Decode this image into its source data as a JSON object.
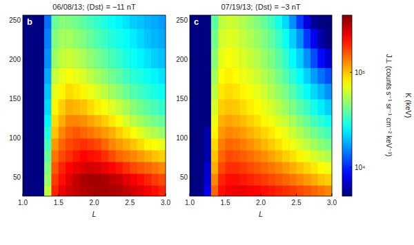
{
  "chart_data": [
    {
      "type": "heatmap",
      "title": "06/08/13; ⟨Dst⟩ = −11 nT",
      "annotation": "b",
      "xlabel": "L",
      "xlim": [
        1,
        3
      ],
      "xticks": [
        {
          "value": 1,
          "label": "1.0"
        },
        {
          "value": 1.5,
          "label": "1.5"
        },
        {
          "value": 2,
          "label": "2.0"
        },
        {
          "value": 2.5,
          "label": "2.5"
        },
        {
          "value": 3,
          "label": "3.0"
        }
      ],
      "ylim": [
        26,
        257
      ],
      "yticks": [
        50,
        100,
        150,
        200,
        250
      ],
      "x_bins": [
        1,
        1.1,
        1.2,
        1.3,
        1.4,
        1.5,
        1.6,
        1.7,
        1.8,
        1.9,
        2,
        2.1,
        2.2,
        2.3,
        2.4,
        2.5,
        2.6,
        2.7,
        2.8,
        2.9,
        3
      ],
      "y_bins": [
        26,
        40,
        55,
        70,
        85,
        100,
        115,
        130,
        150,
        170,
        190,
        215,
        240,
        257
      ],
      "z": [
        [
          5000,
          5000,
          5000,
          60000,
          200000,
          250000,
          280000,
          300000,
          320000,
          330000,
          340000,
          340000,
          330000,
          320000,
          300000,
          280000,
          260000,
          240000,
          220000,
          200000
        ],
        [
          5000,
          5000,
          5000,
          50000,
          180000,
          220000,
          260000,
          300000,
          330000,
          340000,
          340000,
          330000,
          310000,
          290000,
          260000,
          240000,
          220000,
          200000,
          180000,
          170000
        ],
        [
          5000,
          5000,
          5000,
          45000,
          160000,
          200000,
          230000,
          250000,
          270000,
          280000,
          270000,
          250000,
          230000,
          210000,
          190000,
          170000,
          160000,
          150000,
          140000,
          130000
        ],
        [
          5000,
          5000,
          5000,
          40000,
          140000,
          170000,
          190000,
          210000,
          230000,
          220000,
          210000,
          190000,
          170000,
          150000,
          140000,
          130000,
          120000,
          110000,
          100000,
          95000
        ],
        [
          5000,
          5000,
          5000,
          35000,
          120000,
          150000,
          170000,
          180000,
          190000,
          180000,
          170000,
          150000,
          130000,
          120000,
          110000,
          100000,
          90000,
          80000,
          75000,
          70000
        ],
        [
          5000,
          5000,
          5000,
          30000,
          100000,
          130000,
          150000,
          160000,
          150000,
          140000,
          130000,
          120000,
          110000,
          95000,
          85000,
          75000,
          68000,
          60000,
          55000,
          50000
        ],
        [
          5000,
          5000,
          5000,
          25000,
          90000,
          110000,
          130000,
          130000,
          125000,
          115000,
          105000,
          95000,
          85000,
          75000,
          65000,
          58000,
          52000,
          47000,
          43000,
          40000
        ],
        [
          5000,
          5000,
          5000,
          22000,
          80000,
          95000,
          110000,
          105000,
          100000,
          90000,
          82000,
          75000,
          67000,
          60000,
          53000,
          47000,
          42000,
          38000,
          35000,
          32000
        ],
        [
          5000,
          5000,
          5000,
          20000,
          70000,
          80000,
          90000,
          85000,
          80000,
          72000,
          65000,
          58000,
          52000,
          46000,
          41000,
          37000,
          34000,
          31000,
          29000,
          27000
        ],
        [
          5000,
          5000,
          5000,
          18000,
          60000,
          70000,
          75000,
          70000,
          65000,
          58000,
          52000,
          47000,
          42000,
          38000,
          34000,
          31000,
          29000,
          27000,
          25000,
          23000
        ],
        [
          5000,
          5000,
          5000,
          16000,
          50000,
          60000,
          62000,
          58000,
          53000,
          48000,
          43000,
          39000,
          35000,
          32000,
          29000,
          27000,
          25000,
          23000,
          21000,
          20000
        ],
        [
          5000,
          5000,
          5000,
          15000,
          45000,
          52000,
          52000,
          48000,
          44000,
          40000,
          36000,
          33000,
          30000,
          28000,
          26000,
          24000,
          22000,
          20000,
          19000,
          18000
        ],
        [
          5000,
          5000,
          5000,
          14000,
          40000,
          46000,
          45000,
          42000,
          38000,
          35000,
          32000,
          29000,
          27000,
          25000,
          23000,
          21000,
          20000,
          19000,
          18000,
          17000
        ]
      ]
    },
    {
      "type": "heatmap",
      "title": "07/19/13; ⟨Dst⟩ = −3 nT",
      "annotation": "c",
      "xlabel": "L",
      "ylabel": "K (keV)",
      "xlim": [
        1,
        3
      ],
      "xticks": [
        {
          "value": 1,
          "label": "1.0"
        },
        {
          "value": 1.5,
          "label": "1.5"
        },
        {
          "value": 2,
          "label": "2.0"
        },
        {
          "value": 2.5,
          "label": "2.5"
        },
        {
          "value": 3,
          "label": "3.0"
        }
      ],
      "ylim": [
        26,
        257
      ],
      "yticks": [
        50,
        100,
        150,
        200,
        250
      ],
      "x_bins": [
        1,
        1.1,
        1.2,
        1.3,
        1.4,
        1.5,
        1.6,
        1.7,
        1.8,
        1.9,
        2,
        2.1,
        2.2,
        2.3,
        2.4,
        2.5,
        2.6,
        2.7,
        2.8,
        2.9,
        3
      ],
      "y_bins": [
        26,
        40,
        55,
        70,
        85,
        100,
        115,
        130,
        150,
        170,
        190,
        215,
        240,
        257
      ],
      "z": [
        [
          5000,
          5000,
          8000,
          150000,
          220000,
          240000,
          250000,
          250000,
          240000,
          230000,
          220000,
          210000,
          200000,
          190000,
          180000,
          170000,
          160000,
          150000,
          140000,
          130000
        ],
        [
          5000,
          5000,
          7000,
          130000,
          200000,
          220000,
          220000,
          210000,
          200000,
          190000,
          180000,
          170000,
          160000,
          150000,
          140000,
          130000,
          120000,
          110000,
          100000,
          95000
        ],
        [
          5000,
          5000,
          7000,
          110000,
          170000,
          190000,
          190000,
          180000,
          170000,
          160000,
          150000,
          140000,
          130000,
          120000,
          110000,
          100000,
          92000,
          85000,
          78000,
          72000
        ],
        [
          5000,
          5000,
          6000,
          100000,
          150000,
          170000,
          165000,
          155000,
          145000,
          135000,
          125000,
          115000,
          105000,
          95000,
          88000,
          80000,
          72000,
          65000,
          60000,
          55000
        ],
        [
          5000,
          5000,
          6000,
          90000,
          135000,
          150000,
          145000,
          135000,
          125000,
          115000,
          105000,
          97000,
          88000,
          80000,
          72000,
          65000,
          58000,
          52000,
          47000,
          43000
        ],
        [
          5000,
          5000,
          6000,
          80000,
          120000,
          130000,
          125000,
          118000,
          108000,
          100000,
          92000,
          85000,
          77000,
          70000,
          62000,
          55000,
          48000,
          43000,
          38000,
          34000
        ],
        [
          5000,
          5000,
          5000,
          72000,
          108000,
          115000,
          110000,
          103000,
          95000,
          88000,
          80000,
          73000,
          66000,
          60000,
          53000,
          46000,
          40000,
          35000,
          31000,
          27000
        ],
        [
          5000,
          5000,
          5000,
          65000,
          95000,
          100000,
          97000,
          90000,
          84000,
          78000,
          71000,
          64000,
          57000,
          50000,
          44000,
          38000,
          33000,
          28000,
          24000,
          21000
        ],
        [
          5000,
          5000,
          5000,
          58000,
          85000,
          90000,
          86000,
          80000,
          75000,
          69000,
          63000,
          56000,
          49000,
          43000,
          37000,
          31000,
          26000,
          22000,
          19000,
          16000
        ],
        [
          5000,
          5000,
          5000,
          52000,
          78000,
          82000,
          78000,
          72000,
          67000,
          62000,
          56000,
          50000,
          43000,
          37000,
          31000,
          26000,
          21000,
          17000,
          14000,
          12000
        ],
        [
          5000,
          5000,
          5000,
          47000,
          70000,
          75000,
          71000,
          66000,
          61000,
          56000,
          50000,
          44000,
          38000,
          32000,
          26000,
          21000,
          16000,
          12000,
          9000,
          7000
        ],
        [
          5000,
          5000,
          5000,
          42000,
          64000,
          68000,
          65000,
          60000,
          55000,
          50000,
          45000,
          39000,
          33000,
          27000,
          21000,
          16000,
          11000,
          8000,
          6000,
          5000
        ],
        [
          5000,
          5000,
          5000,
          38000,
          58000,
          62000,
          60000,
          55000,
          50000,
          45000,
          40000,
          34000,
          28000,
          22000,
          16000,
          11000,
          7500,
          5500,
          5000,
          5000
        ]
      ],
      "colorbar": {
        "label": "J⊥ (counts s⁻¹ sr⁻¹ cm⁻² keV⁻¹)",
        "range": [
          5000,
          400000
        ],
        "log": true,
        "ticks": [
          {
            "value": 10000,
            "label": "10⁴"
          },
          {
            "value": 100000,
            "label": "10⁵"
          }
        ]
      }
    }
  ]
}
